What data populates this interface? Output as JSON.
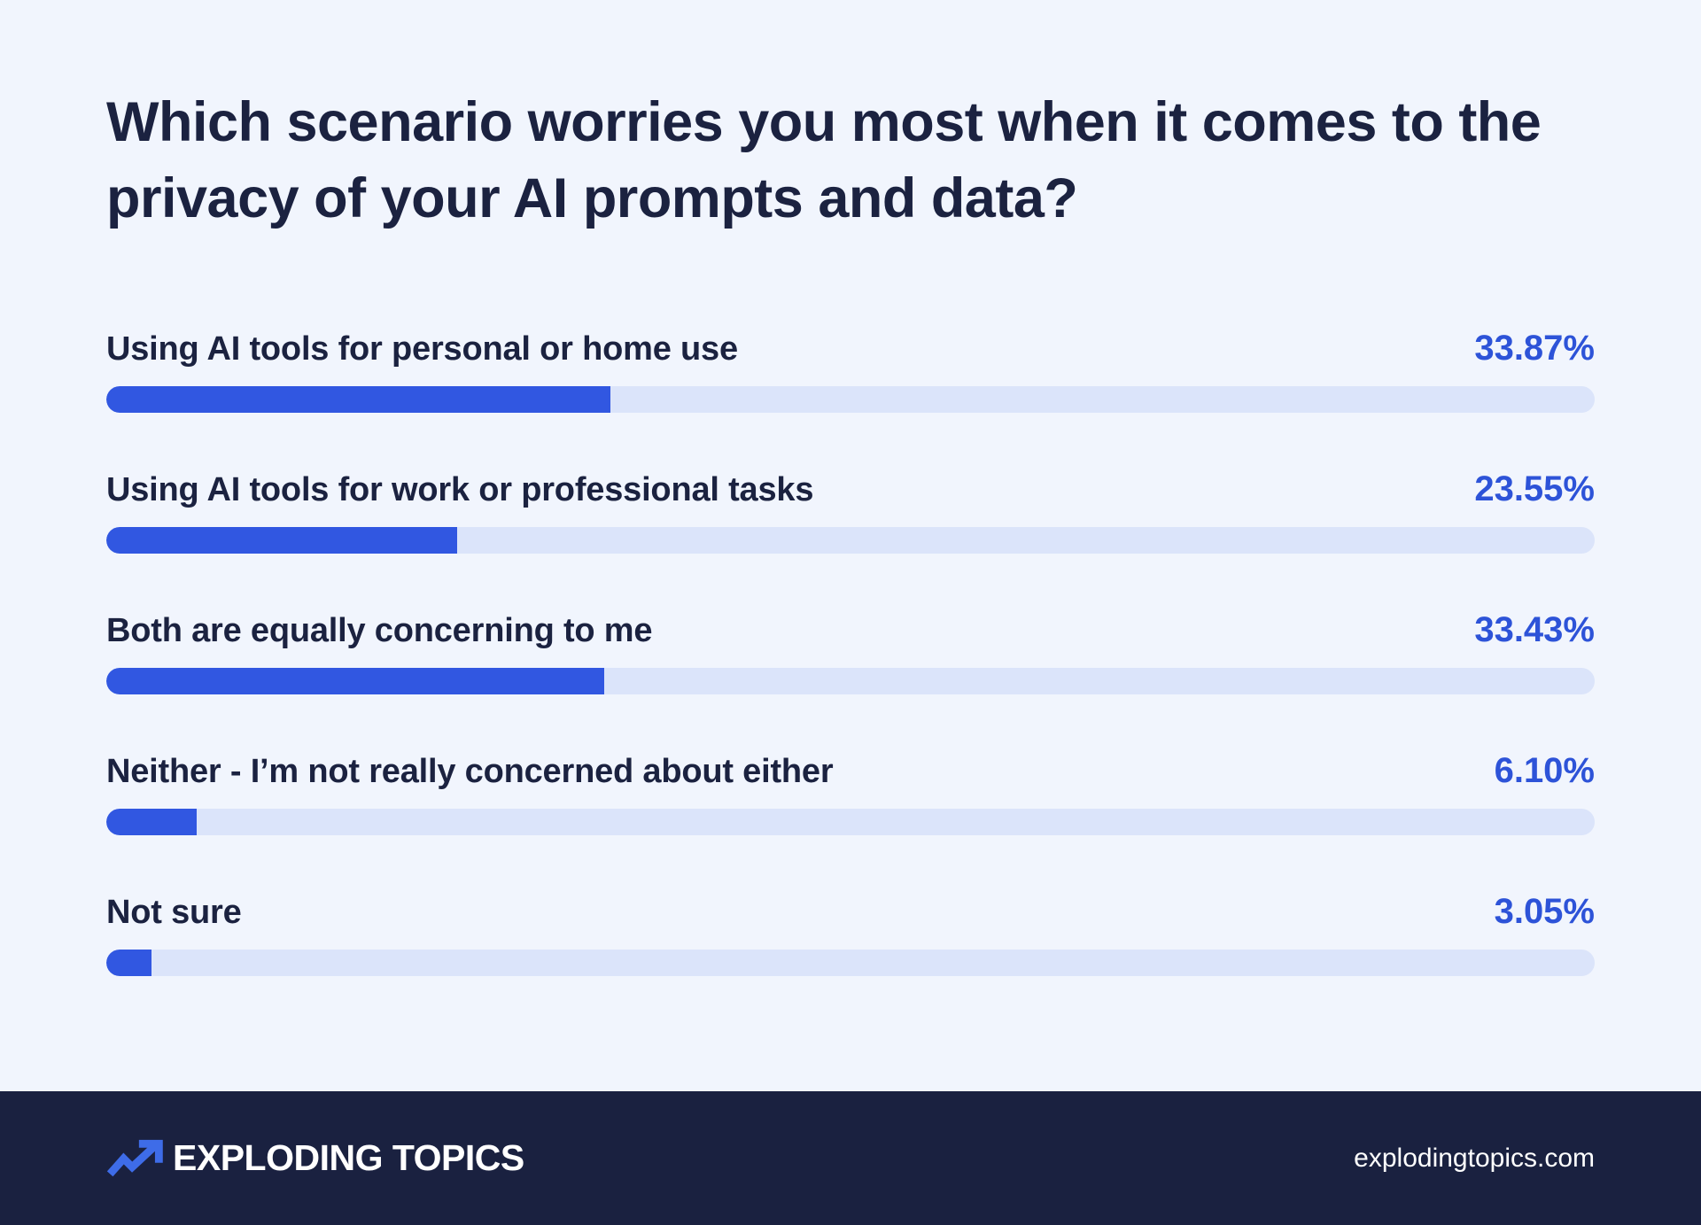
{
  "title": "Which scenario worries you most when it comes to the privacy of your AI prompts and data?",
  "chart_data": {
    "type": "bar",
    "orientation": "horizontal",
    "title": "Which scenario worries you most when it comes to the privacy of your AI prompts and data?",
    "unit": "%",
    "xlim": [
      0,
      100
    ],
    "grid": false,
    "legend": false,
    "categories": [
      "Using AI tools for personal or home use",
      "Using AI tools for work or professional tasks",
      "Both are equally concerning to me",
      "Neither - I’m not really concerned about either",
      "Not sure"
    ],
    "values": [
      33.87,
      23.55,
      33.43,
      6.1,
      3.05
    ],
    "value_labels": [
      "33.87%",
      "23.55%",
      "33.43%",
      "6.10%",
      "3.05%"
    ]
  },
  "footer": {
    "brand_name": "EXPLODING TOPICS",
    "brand_icon": "trend-arrow-icon",
    "website": "explodingtopics.com"
  },
  "colors": {
    "background": "#F1F5FD",
    "text_dark": "#1B2240",
    "bar_fill": "#3157E1",
    "value_text": "#2D53D8",
    "bar_track": "#DBE4FA",
    "footer_bg": "#1A2140",
    "footer_text": "#FFFFFF",
    "icon_blue": "#3E6CE8"
  }
}
